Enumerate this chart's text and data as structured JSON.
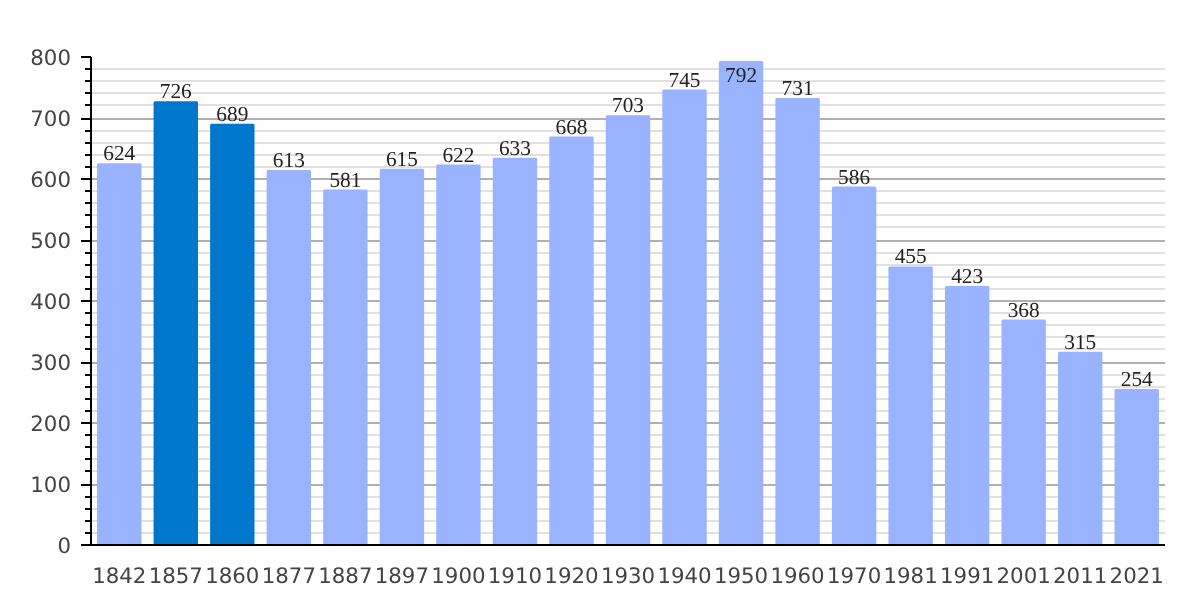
{
  "chart_data": {
    "type": "bar",
    "categories": [
      "1842",
      "1857",
      "1860",
      "1877",
      "1887",
      "1897",
      "1900",
      "1910",
      "1920",
      "1930",
      "1940",
      "1950",
      "1960",
      "1970",
      "1981",
      "1991",
      "2001",
      "2011",
      "2021"
    ],
    "values": [
      624,
      726,
      689,
      613,
      581,
      615,
      622,
      633,
      668,
      703,
      745,
      792,
      731,
      586,
      455,
      423,
      368,
      315,
      254
    ],
    "colors": [
      "#99b3ff",
      "#0077cc",
      "#0077cc",
      "#99b3ff",
      "#99b3ff",
      "#99b3ff",
      "#99b3ff",
      "#99b3ff",
      "#99b3ff",
      "#99b3ff",
      "#99b3ff",
      "#99b3ff",
      "#99b3ff",
      "#99b3ff",
      "#99b3ff",
      "#99b3ff",
      "#99b3ff",
      "#99b3ff",
      "#99b3ff"
    ],
    "ylim": [
      0,
      800
    ],
    "yticks": [
      0,
      {
        "value": 20,
        "label": null
      },
      {
        "value": 40,
        "label": null
      },
      {
        "value": 60,
        "label": null
      },
      {
        "value": 80,
        "label": null
      },
      100,
      {
        "value": 120,
        "label": null
      },
      {
        "value": 140,
        "label": null
      },
      {
        "value": 160,
        "label": null
      },
      {
        "value": 180,
        "label": null
      },
      200,
      {
        "value": 220,
        "label": null
      },
      {
        "value": 240,
        "label": null
      },
      {
        "value": 260,
        "label": null
      },
      {
        "value": 280,
        "label": null
      },
      300,
      {
        "value": 320,
        "label": null
      },
      {
        "value": 340,
        "label": null
      },
      {
        "value": 360,
        "label": null
      },
      {
        "value": 380,
        "label": null
      },
      400,
      {
        "value": 420,
        "label": null
      },
      {
        "value": 440,
        "label": null
      },
      {
        "value": 460,
        "label": null
      },
      {
        "value": 480,
        "label": null
      },
      500,
      {
        "value": 520,
        "label": null
      },
      {
        "value": 540,
        "label": null
      },
      {
        "value": 560,
        "label": null
      },
      {
        "value": 580,
        "label": null
      },
      600,
      {
        "value": 620,
        "label": null
      },
      {
        "value": 640,
        "label": null
      },
      {
        "value": 660,
        "label": null
      },
      {
        "value": 680,
        "label": null
      },
      700,
      {
        "value": 720,
        "label": null
      },
      {
        "value": 740,
        "label": null
      },
      {
        "value": 760,
        "label": null
      },
      {
        "value": 780,
        "label": null
      },
      800
    ],
    "grid": "y",
    "data_labels": true
  }
}
